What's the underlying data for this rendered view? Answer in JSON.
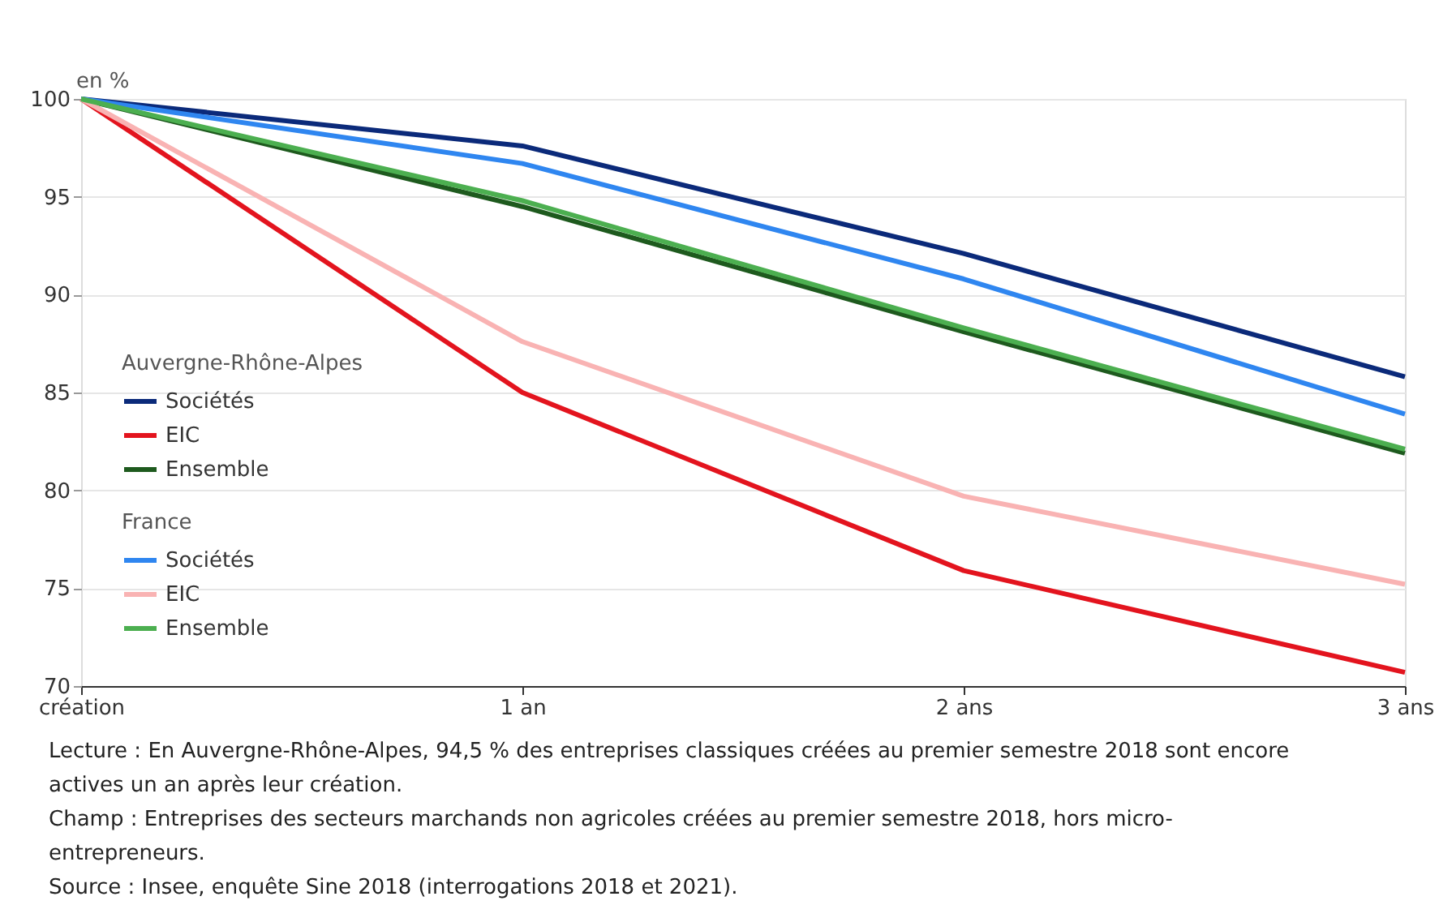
{
  "chart_data": {
    "type": "line",
    "ylabel": "en %",
    "categories": [
      "création",
      "1 an",
      "2 ans",
      "3 ans"
    ],
    "ylim": [
      70,
      100
    ],
    "yticks": [
      70,
      75,
      80,
      85,
      90,
      95,
      100
    ],
    "grid": "y",
    "legend": "left",
    "legend_title": [
      "Auvergne-Rhône-Alpes",
      "France"
    ],
    "marker": "none",
    "line_style": "solid",
    "series": [
      {
        "name": "Sociétés",
        "color": "#0b2a7a",
        "values": [
          100,
          97.6,
          92.1,
          85.8
        ]
      },
      {
        "name": "EIC",
        "color": "#e3141e",
        "values": [
          100,
          85.0,
          75.9,
          70.7
        ]
      },
      {
        "name": "Ensemble",
        "color": "#1e5a1e",
        "values": [
          100,
          94.5,
          88.1,
          81.9
        ]
      },
      {
        "name": "Sociétés",
        "color": "#2f86f0",
        "values": [
          100,
          96.7,
          90.8,
          83.9
        ]
      },
      {
        "name": "EIC",
        "color": "#f9b3b3",
        "values": [
          100,
          87.6,
          79.7,
          75.2
        ]
      },
      {
        "name": "Ensemble",
        "color": "#4caf50",
        "values": [
          100,
          94.8,
          88.3,
          82.1
        ]
      }
    ],
    "annotations": [
      "Lecture : En Auvergne-Rhône-Alpes, 94,5 % des entreprises classiques créées au premier semestre 2018 sont encore actives un an après leur création.",
      "Champ : Entreprises des secteurs marchands non agricoles créées au premier semestre 2018, hors micro-entrepreneurs.",
      "Source : Insee, enquête Sine 2018 (interrogations 2018 et 2021)."
    ]
  }
}
